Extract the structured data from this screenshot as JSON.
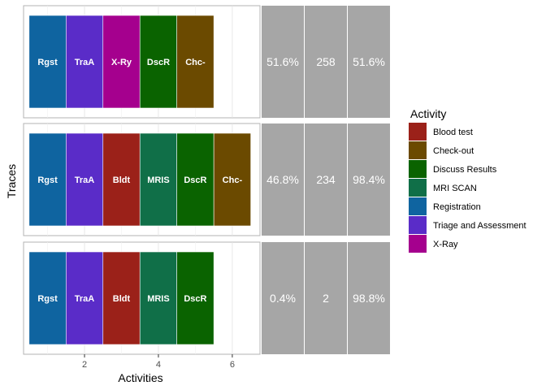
{
  "chart_data": {
    "type": "trace-explorer",
    "xlabel": "Activities",
    "ylabel": "Traces",
    "xlim": [
      0.35,
      6.75
    ],
    "xticks": [
      2,
      4,
      6
    ],
    "grid": true,
    "legend_title": "Activity",
    "legend_position": "right",
    "legend": [
      {
        "name": "Blood test",
        "color": "#9B2119"
      },
      {
        "name": "Check-out",
        "color": "#6B4A00"
      },
      {
        "name": "Discuss Results",
        "color": "#0A6300"
      },
      {
        "name": "MRI SCAN",
        "color": "#106F48"
      },
      {
        "name": "Registration",
        "color": "#0F64A0"
      },
      {
        "name": "Triage and Assessment",
        "color": "#5A2CC8"
      },
      {
        "name": "X-Ray",
        "color": "#A5008E"
      }
    ],
    "traces": [
      {
        "activities": [
          {
            "label": "Rgst",
            "color": "#0F64A0"
          },
          {
            "label": "TraA",
            "color": "#5A2CC8"
          },
          {
            "label": "X-Ry",
            "color": "#A5008E"
          },
          {
            "label": "DscR",
            "color": "#0A6300"
          },
          {
            "label": "Chc-",
            "color": "#6B4A00"
          }
        ],
        "relative_frequency": "51.6%",
        "absolute_frequency": "258",
        "cumulative_frequency": "51.6%"
      },
      {
        "activities": [
          {
            "label": "Rgst",
            "color": "#0F64A0"
          },
          {
            "label": "TraA",
            "color": "#5A2CC8"
          },
          {
            "label": "Bldt",
            "color": "#9B2119"
          },
          {
            "label": "MRIS",
            "color": "#106F48"
          },
          {
            "label": "DscR",
            "color": "#0A6300"
          },
          {
            "label": "Chc-",
            "color": "#6B4A00"
          }
        ],
        "relative_frequency": "46.8%",
        "absolute_frequency": "234",
        "cumulative_frequency": "98.4%"
      },
      {
        "activities": [
          {
            "label": "Rgst",
            "color": "#0F64A0"
          },
          {
            "label": "TraA",
            "color": "#5A2CC8"
          },
          {
            "label": "Bldt",
            "color": "#9B2119"
          },
          {
            "label": "MRIS",
            "color": "#106F48"
          },
          {
            "label": "DscR",
            "color": "#0A6300"
          }
        ],
        "relative_frequency": "0.4%",
        "absolute_frequency": "2",
        "cumulative_frequency": "98.8%"
      }
    ]
  }
}
